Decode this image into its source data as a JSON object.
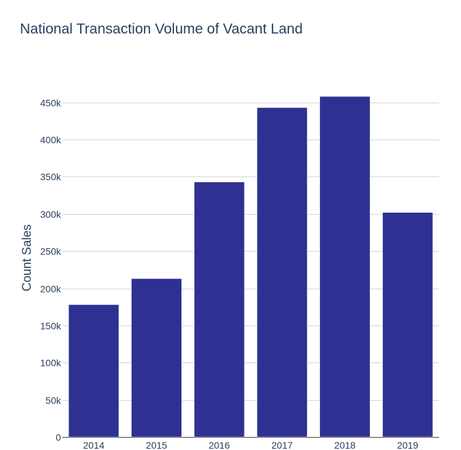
{
  "chart_data": {
    "type": "bar",
    "title": "National Transaction Volume of Vacant Land",
    "xlabel": "",
    "ylabel": "Count Sales",
    "categories": [
      "2014",
      "2015",
      "2016",
      "2017",
      "2018",
      "2019"
    ],
    "values": [
      178000,
      213000,
      343000,
      443000,
      458000,
      302000
    ],
    "ylim": [
      0,
      470000
    ],
    "yticks": [
      0,
      50000,
      100000,
      150000,
      200000,
      250000,
      300000,
      350000,
      400000,
      450000
    ],
    "ytick_labels": [
      "0",
      "50k",
      "100k",
      "150k",
      "200k",
      "250k",
      "300k",
      "350k",
      "400k",
      "450k"
    ],
    "grid": true,
    "bar_color": "#2e3192"
  }
}
